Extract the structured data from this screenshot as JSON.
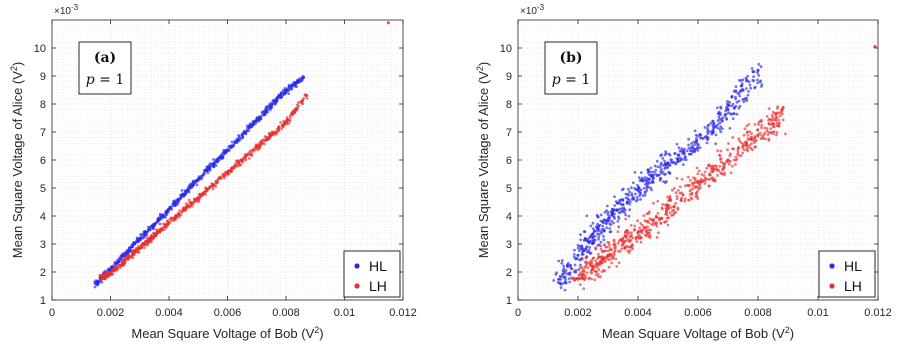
{
  "chart_data": [
    {
      "type": "scatter",
      "panel_label": "(a)",
      "annotation": "p = 1",
      "xlabel": "Mean Square Voltage of Bob (V^2)",
      "ylabel": "Mean Square Voltage of Alice (V^2)",
      "y_exponent": "×10^-3",
      "xlim": [
        0,
        0.012
      ],
      "ylim": [
        0.001,
        0.011
      ],
      "x_ticks": [
        "0",
        "0.002",
        "0.004",
        "0.006",
        "0.008",
        "0.01",
        "0.012"
      ],
      "y_ticks": [
        "1",
        "2",
        "3",
        "4",
        "5",
        "6",
        "7",
        "8",
        "9",
        "10"
      ],
      "grid": true,
      "legend_position": "bottom-right",
      "series": [
        {
          "name": "HL",
          "color": "#2a2ae8",
          "points": [
            [
              0.0015,
              0.00158
            ],
            [
              0.002,
              0.0021
            ],
            [
              0.0025,
              0.00265
            ],
            [
              0.003,
              0.00318
            ],
            [
              0.0035,
              0.00371
            ],
            [
              0.004,
              0.00424
            ],
            [
              0.0045,
              0.00477
            ],
            [
              0.005,
              0.0053
            ],
            [
              0.0055,
              0.00583
            ],
            [
              0.006,
              0.00636
            ],
            [
              0.0065,
              0.00689
            ],
            [
              0.007,
              0.00742
            ],
            [
              0.0075,
              0.00795
            ],
            [
              0.008,
              0.00848
            ],
            [
              0.0086,
              0.00895
            ]
          ]
        },
        {
          "name": "LH",
          "color": "#e83030",
          "points": [
            [
              0.0017,
              0.0018
            ],
            [
              0.002,
              0.00195
            ],
            [
              0.0025,
              0.0024
            ],
            [
              0.003,
              0.00285
            ],
            [
              0.0035,
              0.0033
            ],
            [
              0.004,
              0.00375
            ],
            [
              0.0045,
              0.0042
            ],
            [
              0.005,
              0.00465
            ],
            [
              0.0055,
              0.0051
            ],
            [
              0.006,
              0.00555
            ],
            [
              0.0065,
              0.006
            ],
            [
              0.007,
              0.00645
            ],
            [
              0.0075,
              0.0069
            ],
            [
              0.008,
              0.00735
            ],
            [
              0.0087,
              0.0083
            ],
            [
              0.0115,
              0.0109
            ]
          ]
        }
      ]
    },
    {
      "type": "scatter",
      "panel_label": "(b)",
      "annotation": "p = 1",
      "xlabel": "Mean Square Voltage of Bob (V^2)",
      "ylabel": "Mean Square Voltage of Alice (V^2)",
      "y_exponent": "×10^-3",
      "xlim": [
        0,
        0.012
      ],
      "ylim": [
        0.001,
        0.011
      ],
      "x_ticks": [
        "0",
        "0.002",
        "0.004",
        "0.006",
        "0.008",
        "0.01",
        "0.012"
      ],
      "y_ticks": [
        "1",
        "2",
        "3",
        "4",
        "5",
        "6",
        "7",
        "8",
        "9",
        "10"
      ],
      "grid": true,
      "legend_position": "bottom-right",
      "series": [
        {
          "name": "HL",
          "color": "#2a2ae8",
          "points": [
            [
              0.0014,
              0.0016
            ],
            [
              0.002,
              0.0026
            ],
            [
              0.0025,
              0.00325
            ],
            [
              0.003,
              0.00385
            ],
            [
              0.0035,
              0.0044
            ],
            [
              0.004,
              0.00495
            ],
            [
              0.0045,
              0.00545
            ],
            [
              0.005,
              0.0059
            ],
            [
              0.0055,
              0.00625
            ],
            [
              0.006,
              0.00655
            ],
            [
              0.0065,
              0.00705
            ],
            [
              0.007,
              0.0078
            ],
            [
              0.0075,
              0.0085
            ],
            [
              0.008,
              0.0092
            ]
          ]
        },
        {
          "name": "LH",
          "color": "#e83030",
          "points": [
            [
              0.002,
              0.00175
            ],
            [
              0.0025,
              0.0022
            ],
            [
              0.003,
              0.0026
            ],
            [
              0.0035,
              0.003
            ],
            [
              0.004,
              0.0034
            ],
            [
              0.0045,
              0.00385
            ],
            [
              0.005,
              0.0043
            ],
            [
              0.0055,
              0.00475
            ],
            [
              0.006,
              0.0052
            ],
            [
              0.0065,
              0.0056
            ],
            [
              0.007,
              0.006
            ],
            [
              0.0075,
              0.0065
            ],
            [
              0.008,
              0.0069
            ],
            [
              0.0085,
              0.0073
            ],
            [
              0.0088,
              0.0078
            ],
            [
              0.0119,
              0.01005
            ]
          ]
        }
      ]
    }
  ],
  "legend": {
    "hl": "HL",
    "lh": "LH"
  },
  "colors": {
    "hl": "#2a2ae8",
    "lh": "#e83030",
    "grid": "#d9d9d9",
    "axis": "#262626"
  }
}
